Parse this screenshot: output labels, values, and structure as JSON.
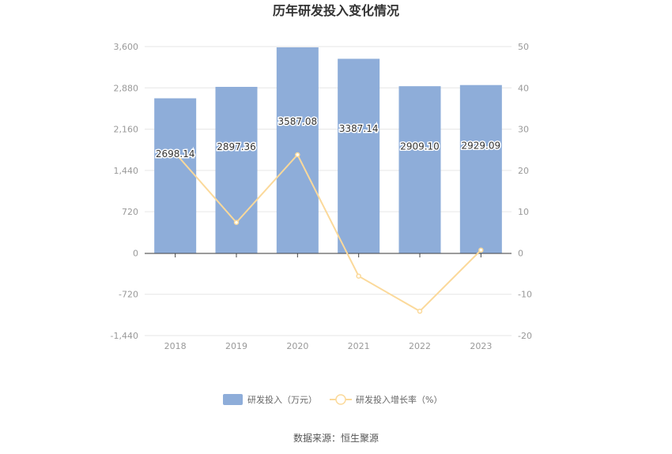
{
  "source_text": "数据来源：恒生聚源",
  "chart_data": {
    "type": "bar",
    "title": "历年研发投入变化情况",
    "categories": [
      "2018",
      "2019",
      "2020",
      "2021",
      "2022",
      "2023"
    ],
    "series": [
      {
        "name": "研发投入（万元）",
        "type": "bar",
        "axis": "left",
        "color": "#8eadd9",
        "values": [
          2698.14,
          2897.36,
          3587.08,
          3387.14,
          2909.1,
          2929.09
        ],
        "labels": [
          "2698.14",
          "2897.36",
          "3587.08",
          "3387.14",
          "2909.10",
          "2929.09"
        ]
      },
      {
        "name": "研发投入增长率（%）",
        "type": "line",
        "axis": "right",
        "color": "#fbd99a",
        "values": [
          24.2,
          7.4,
          23.8,
          -5.6,
          -14.1,
          0.7
        ]
      }
    ],
    "y_left": {
      "ticks": [
        "3,600",
        "2,880",
        "2,160",
        "1,440",
        "720",
        "0",
        "-720",
        "-1,440"
      ],
      "range": [
        -1440,
        3600
      ]
    },
    "y_right": {
      "ticks": [
        "50",
        "40",
        "30",
        "20",
        "10",
        "0",
        "-10",
        "-20"
      ],
      "range": [
        -20,
        50
      ]
    },
    "grid": true,
    "legend_position": "bottom"
  }
}
